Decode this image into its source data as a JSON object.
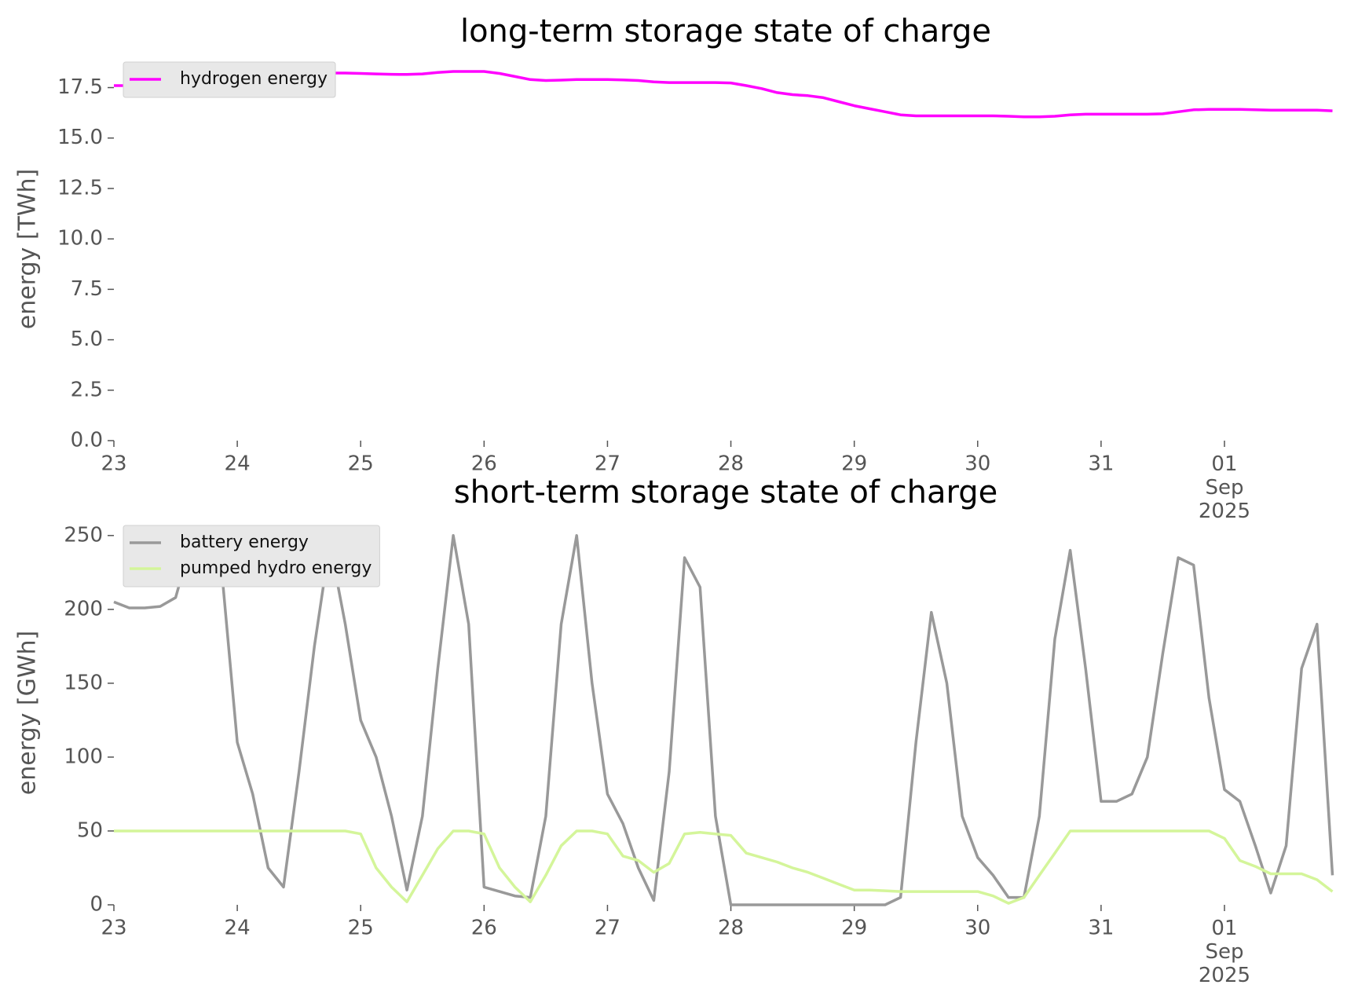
{
  "chart_data": [
    {
      "type": "line",
      "title": "long-term storage state of charge",
      "ylabel": "energy [TWh]",
      "x": [
        "2025-08-23 00:00",
        "2025-08-23 03:00",
        "2025-08-23 06:00",
        "2025-08-23 09:00",
        "2025-08-23 12:00",
        "2025-08-23 15:00",
        "2025-08-23 18:00",
        "2025-08-23 21:00",
        "2025-08-24 00:00",
        "2025-08-24 03:00",
        "2025-08-24 06:00",
        "2025-08-24 09:00",
        "2025-08-24 12:00",
        "2025-08-24 15:00",
        "2025-08-24 18:00",
        "2025-08-24 21:00",
        "2025-08-25 00:00",
        "2025-08-25 03:00",
        "2025-08-25 06:00",
        "2025-08-25 09:00",
        "2025-08-25 12:00",
        "2025-08-25 15:00",
        "2025-08-25 18:00",
        "2025-08-25 21:00",
        "2025-08-26 00:00",
        "2025-08-26 03:00",
        "2025-08-26 06:00",
        "2025-08-26 09:00",
        "2025-08-26 12:00",
        "2025-08-26 15:00",
        "2025-08-26 18:00",
        "2025-08-26 21:00",
        "2025-08-27 00:00",
        "2025-08-27 03:00",
        "2025-08-27 06:00",
        "2025-08-27 09:00",
        "2025-08-27 12:00",
        "2025-08-27 15:00",
        "2025-08-27 18:00",
        "2025-08-27 21:00",
        "2025-08-28 00:00",
        "2025-08-28 03:00",
        "2025-08-28 06:00",
        "2025-08-28 09:00",
        "2025-08-28 12:00",
        "2025-08-28 15:00",
        "2025-08-28 18:00",
        "2025-08-28 21:00",
        "2025-08-29 00:00",
        "2025-08-29 03:00",
        "2025-08-29 06:00",
        "2025-08-29 09:00",
        "2025-08-29 12:00",
        "2025-08-29 15:00",
        "2025-08-29 18:00",
        "2025-08-29 21:00",
        "2025-08-30 00:00",
        "2025-08-30 03:00",
        "2025-08-30 06:00",
        "2025-08-30 09:00",
        "2025-08-30 12:00",
        "2025-08-30 15:00",
        "2025-08-30 18:00",
        "2025-08-30 21:00",
        "2025-08-31 00:00",
        "2025-08-31 03:00",
        "2025-08-31 06:00",
        "2025-08-31 09:00",
        "2025-08-31 12:00",
        "2025-08-31 15:00",
        "2025-08-31 18:00",
        "2025-08-31 21:00",
        "2025-09-01 00:00",
        "2025-09-01 03:00",
        "2025-09-01 06:00",
        "2025-09-01 09:00",
        "2025-09-01 12:00",
        "2025-09-01 15:00",
        "2025-09-01 18:00",
        "2025-09-01 21:00"
      ],
      "xlim": [
        "2025-08-23 00:00",
        "2025-09-01 22:00"
      ],
      "xticks": [
        {
          "value": "2025-08-23 00:00",
          "label": "23"
        },
        {
          "value": "2025-08-24 00:00",
          "label": "24"
        },
        {
          "value": "2025-08-25 00:00",
          "label": "25"
        },
        {
          "value": "2025-08-26 00:00",
          "label": "26"
        },
        {
          "value": "2025-08-27 00:00",
          "label": "27"
        },
        {
          "value": "2025-08-28 00:00",
          "label": "28"
        },
        {
          "value": "2025-08-29 00:00",
          "label": "29"
        },
        {
          "value": "2025-08-30 00:00",
          "label": "30"
        },
        {
          "value": "2025-08-31 00:00",
          "label": "31"
        },
        {
          "value": "2025-09-01 00:00",
          "label": "01\nSep\n2025"
        }
      ],
      "ylim": [
        0,
        19
      ],
      "yticks": [
        {
          "value": 0,
          "label": "0.0"
        },
        2.5,
        {
          "value": 5,
          "label": "5.0"
        },
        7.5,
        {
          "value": 10,
          "label": "10.0"
        },
        12.5,
        {
          "value": 15,
          "label": "15.0"
        },
        17.5
      ],
      "legend": "upper left",
      "series": [
        {
          "name": "hydrogen energy",
          "color": "#ff00ff",
          "values": [
            17.6,
            17.6,
            17.6,
            17.62,
            17.68,
            17.8,
            17.9,
            18.0,
            18.05,
            18.1,
            18.12,
            18.15,
            18.18,
            18.2,
            18.22,
            18.22,
            18.2,
            18.18,
            18.16,
            18.15,
            18.18,
            18.25,
            18.3,
            18.3,
            18.3,
            18.2,
            18.05,
            17.9,
            17.85,
            17.87,
            17.9,
            17.9,
            17.9,
            17.88,
            17.85,
            17.78,
            17.75,
            17.75,
            17.75,
            17.75,
            17.73,
            17.6,
            17.45,
            17.25,
            17.15,
            17.1,
            17.0,
            16.8,
            16.6,
            16.45,
            16.3,
            16.15,
            16.1,
            16.1,
            16.1,
            16.1,
            16.1,
            16.1,
            16.08,
            16.05,
            16.05,
            16.08,
            16.15,
            16.18,
            16.18,
            16.18,
            16.18,
            16.18,
            16.2,
            16.3,
            16.4,
            16.42,
            16.42,
            16.42,
            16.4,
            16.38,
            16.38,
            16.38,
            16.38,
            16.35
          ]
        }
      ]
    },
    {
      "type": "line",
      "title": "short-term storage state of charge",
      "ylabel": "energy [GWh]",
      "x": [
        "2025-08-23 00:00",
        "2025-08-23 03:00",
        "2025-08-23 06:00",
        "2025-08-23 09:00",
        "2025-08-23 12:00",
        "2025-08-23 15:00",
        "2025-08-23 18:00",
        "2025-08-23 21:00",
        "2025-08-24 00:00",
        "2025-08-24 03:00",
        "2025-08-24 06:00",
        "2025-08-24 09:00",
        "2025-08-24 12:00",
        "2025-08-24 15:00",
        "2025-08-24 18:00",
        "2025-08-24 21:00",
        "2025-08-25 00:00",
        "2025-08-25 03:00",
        "2025-08-25 06:00",
        "2025-08-25 09:00",
        "2025-08-25 12:00",
        "2025-08-25 15:00",
        "2025-08-25 18:00",
        "2025-08-25 21:00",
        "2025-08-26 00:00",
        "2025-08-26 03:00",
        "2025-08-26 06:00",
        "2025-08-26 09:00",
        "2025-08-26 12:00",
        "2025-08-26 15:00",
        "2025-08-26 18:00",
        "2025-08-26 21:00",
        "2025-08-27 00:00",
        "2025-08-27 03:00",
        "2025-08-27 06:00",
        "2025-08-27 09:00",
        "2025-08-27 12:00",
        "2025-08-27 15:00",
        "2025-08-27 18:00",
        "2025-08-27 21:00",
        "2025-08-28 00:00",
        "2025-08-28 03:00",
        "2025-08-28 06:00",
        "2025-08-28 09:00",
        "2025-08-28 12:00",
        "2025-08-28 15:00",
        "2025-08-28 18:00",
        "2025-08-28 21:00",
        "2025-08-29 00:00",
        "2025-08-29 03:00",
        "2025-08-29 06:00",
        "2025-08-29 09:00",
        "2025-08-29 12:00",
        "2025-08-29 15:00",
        "2025-08-29 18:00",
        "2025-08-29 21:00",
        "2025-08-30 00:00",
        "2025-08-30 03:00",
        "2025-08-30 06:00",
        "2025-08-30 09:00",
        "2025-08-30 12:00",
        "2025-08-30 15:00",
        "2025-08-30 18:00",
        "2025-08-30 21:00",
        "2025-08-31 00:00",
        "2025-08-31 03:00",
        "2025-08-31 06:00",
        "2025-08-31 09:00",
        "2025-08-31 12:00",
        "2025-08-31 15:00",
        "2025-08-31 18:00",
        "2025-08-31 21:00",
        "2025-09-01 00:00",
        "2025-09-01 03:00",
        "2025-09-01 06:00",
        "2025-09-01 09:00",
        "2025-09-01 12:00",
        "2025-09-01 15:00",
        "2025-09-01 18:00",
        "2025-09-01 21:00"
      ],
      "xlim": [
        "2025-08-23 00:00",
        "2025-09-01 22:00"
      ],
      "xticks": [
        {
          "value": "2025-08-23 00:00",
          "label": "23"
        },
        {
          "value": "2025-08-24 00:00",
          "label": "24"
        },
        {
          "value": "2025-08-25 00:00",
          "label": "25"
        },
        {
          "value": "2025-08-26 00:00",
          "label": "26"
        },
        {
          "value": "2025-08-27 00:00",
          "label": "27"
        },
        {
          "value": "2025-08-28 00:00",
          "label": "28"
        },
        {
          "value": "2025-08-29 00:00",
          "label": "29"
        },
        {
          "value": "2025-08-30 00:00",
          "label": "30"
        },
        {
          "value": "2025-08-31 00:00",
          "label": "31"
        },
        {
          "value": "2025-09-01 00:00",
          "label": "01\nSep\n2025"
        }
      ],
      "ylim": [
        0,
        260
      ],
      "yticks": [
        0,
        50,
        100,
        150,
        200,
        250
      ],
      "legend": "upper left",
      "series": [
        {
          "name": "battery energy",
          "color": "#999999",
          "values": [
            205,
            201,
            201,
            202,
            208,
            245,
            250,
            225,
            110,
            75,
            25,
            12,
            90,
            175,
            245,
            190,
            125,
            100,
            60,
            10,
            60,
            160,
            250,
            190,
            12,
            9,
            6,
            5,
            60,
            190,
            250,
            150,
            75,
            55,
            25,
            3,
            90,
            235,
            215,
            60,
            0,
            0,
            0,
            0,
            0,
            0,
            0,
            0,
            0,
            0,
            0,
            5,
            110,
            198,
            150,
            60,
            32,
            20,
            5,
            5,
            60,
            180,
            240,
            160,
            70,
            70,
            75,
            100,
            170,
            235,
            230,
            140,
            78,
            70,
            40,
            8,
            40,
            160,
            190,
            20
          ]
        },
        {
          "name": "pumped hydro energy",
          "color": "#d4f59a",
          "values": [
            50,
            50,
            50,
            50,
            50,
            50,
            50,
            50,
            50,
            50,
            50,
            50,
            50,
            50,
            50,
            50,
            48,
            25,
            12,
            2,
            20,
            38,
            50,
            50,
            48,
            25,
            12,
            2,
            20,
            40,
            50,
            50,
            48,
            33,
            30,
            22,
            28,
            48,
            49,
            48,
            47,
            35,
            32,
            29,
            25,
            22,
            18,
            14,
            10,
            10,
            9.5,
            9,
            9,
            9,
            9,
            9,
            9,
            6,
            1,
            5,
            20,
            35,
            50,
            50,
            50,
            50,
            50,
            50,
            50,
            50,
            50,
            50,
            45,
            30,
            26,
            21,
            21,
            21,
            17,
            9
          ]
        }
      ]
    }
  ]
}
